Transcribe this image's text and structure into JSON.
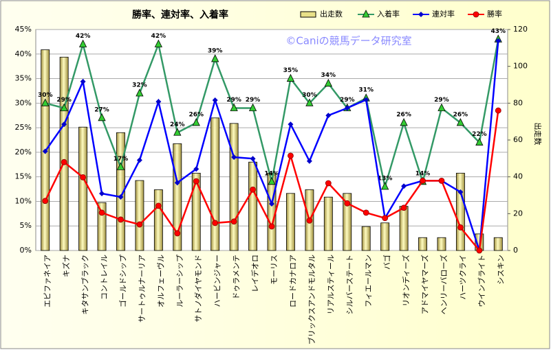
{
  "chart_data": {
    "type": "combo",
    "title": "勝率、連対率、入着率",
    "watermark": "©Caniの競馬データ研究室",
    "y2label": "出走数",
    "categories": [
      "エピファネイア",
      "キズナ",
      "キタサンブラック",
      "コントレイル",
      "ゴールドシップ",
      "サートゥルナーリア",
      "オルフェーヴル",
      "ルーラーシップ",
      "サトノダイヤモンド",
      "ハービンジャー",
      "ドゥラメンテ",
      "レイデオロ",
      "モーリス",
      "ロードカナロア",
      "ブリックスアンドモルタル",
      "リアルスティール",
      "シルバーステート",
      "フィエールマン",
      "バゴ",
      "リオンディーズ",
      "アドマイヤマーズ",
      "ヘンリーバローズ",
      "ハーツクライ",
      "ウインブライト",
      "シスキン"
    ],
    "ylim": [
      0,
      45
    ],
    "yticks": [
      {
        "value": 0,
        "label": "0%"
      },
      {
        "value": 5,
        "label": "5%"
      },
      {
        "value": 10,
        "label": "10%"
      },
      {
        "value": 15,
        "label": "15%"
      },
      {
        "value": 20,
        "label": "20%"
      },
      {
        "value": 25,
        "label": "25%"
      },
      {
        "value": 30,
        "label": "30%"
      },
      {
        "value": 35,
        "label": "35%"
      },
      {
        "value": 40,
        "label": "40%"
      },
      {
        "value": 45,
        "label": "45%"
      }
    ],
    "y2lim": [
      0,
      120
    ],
    "y2ticks": [
      0,
      20,
      40,
      60,
      80,
      100,
      120
    ],
    "grid": true,
    "series": [
      {
        "name": "出走数",
        "type": "bar",
        "axis": "y2",
        "color": "#e8e088",
        "values": [
          109,
          105,
          67,
          26,
          64,
          38,
          33,
          58,
          42,
          72,
          69,
          48,
          42,
          31,
          33,
          29,
          31,
          13,
          15,
          24,
          7,
          7,
          42,
          9,
          7
        ]
      },
      {
        "name": "入着率",
        "type": "line",
        "marker": "triangle",
        "color": "#339966",
        "marker_color": "#33cc33",
        "values": [
          30,
          29,
          42,
          27,
          17,
          32,
          42,
          24,
          26,
          39,
          29,
          29,
          14,
          35,
          30,
          34,
          29,
          31,
          13,
          26,
          14,
          29,
          26,
          22,
          43
        ],
        "value_labels": [
          "30%",
          "29%",
          "42%",
          "27%",
          "17%",
          "32%",
          "42%",
          "24%",
          "26%",
          "39%",
          "29%",
          "29%",
          "14%",
          "35%",
          "30%",
          "34%",
          "29%",
          "31%",
          "13%",
          "26%",
          "14%",
          "29%",
          "26%",
          "22%",
          "43%"
        ]
      },
      {
        "name": "連対率",
        "type": "line",
        "marker": "diamond",
        "color": "#0000ff",
        "marker_color": "#0000cc",
        "values": [
          20.2,
          25.7,
          34.4,
          11.6,
          10.9,
          18.4,
          30.3,
          13.8,
          16.6,
          30.6,
          19.0,
          18.7,
          9.5,
          25.7,
          18.2,
          27.5,
          29.0,
          30.7,
          6.6,
          13.1,
          14.2,
          14.2,
          11.9,
          0,
          42.7
        ]
      },
      {
        "name": "勝率",
        "type": "line",
        "marker": "circle",
        "color": "#ff0000",
        "marker_color": "#ff0000",
        "values": [
          10.1,
          18.0,
          14.9,
          7.7,
          6.3,
          5.3,
          9.1,
          3.5,
          14.1,
          5.6,
          5.9,
          12.4,
          4.9,
          19.3,
          6.1,
          13.7,
          9.6,
          7.7,
          6.6,
          8.7,
          14.2,
          14.2,
          4.7,
          0,
          28.5
        ]
      }
    ]
  }
}
